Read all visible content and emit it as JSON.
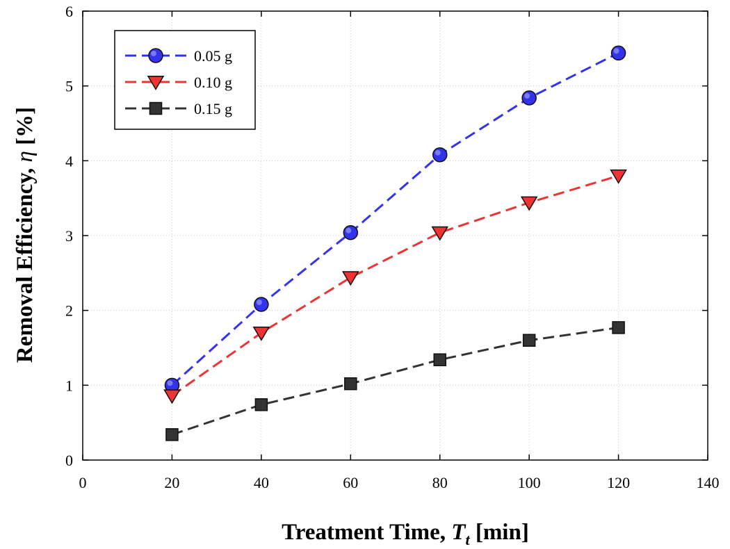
{
  "chart_data": {
    "type": "line",
    "xlabel": "Treatment Time, T_t [min]",
    "xlabel_main": "Treatment Time, ",
    "xlabel_var": "T",
    "xlabel_sub": "t",
    "xlabel_unit": " [min]",
    "ylabel": "Removal Efficiency, η [%]",
    "ylabel_main": "Removal Efficiency, ",
    "ylabel_var": "η",
    "ylabel_unit": " [%]",
    "xlim": [
      0,
      140
    ],
    "ylim": [
      0,
      6
    ],
    "xticks": [
      0,
      20,
      40,
      60,
      80,
      100,
      120,
      140
    ],
    "yticks": [
      0,
      1,
      2,
      3,
      4,
      5,
      6
    ],
    "grid": true,
    "legend_position": "top-left",
    "x": [
      20,
      40,
      60,
      80,
      100,
      120
    ],
    "series": [
      {
        "name": "0.05 g",
        "values": [
          1.0,
          2.08,
          3.04,
          4.08,
          4.84,
          5.44
        ],
        "color": "#3333ee",
        "marker": "circle"
      },
      {
        "name": "0.10 g",
        "values": [
          0.86,
          1.7,
          2.44,
          3.04,
          3.44,
          3.8
        ],
        "color": "#ee3333",
        "marker": "triangle-down"
      },
      {
        "name": "0.15 g",
        "values": [
          0.34,
          0.74,
          1.02,
          1.34,
          1.6,
          1.77
        ],
        "color": "#333333",
        "marker": "square"
      }
    ]
  }
}
